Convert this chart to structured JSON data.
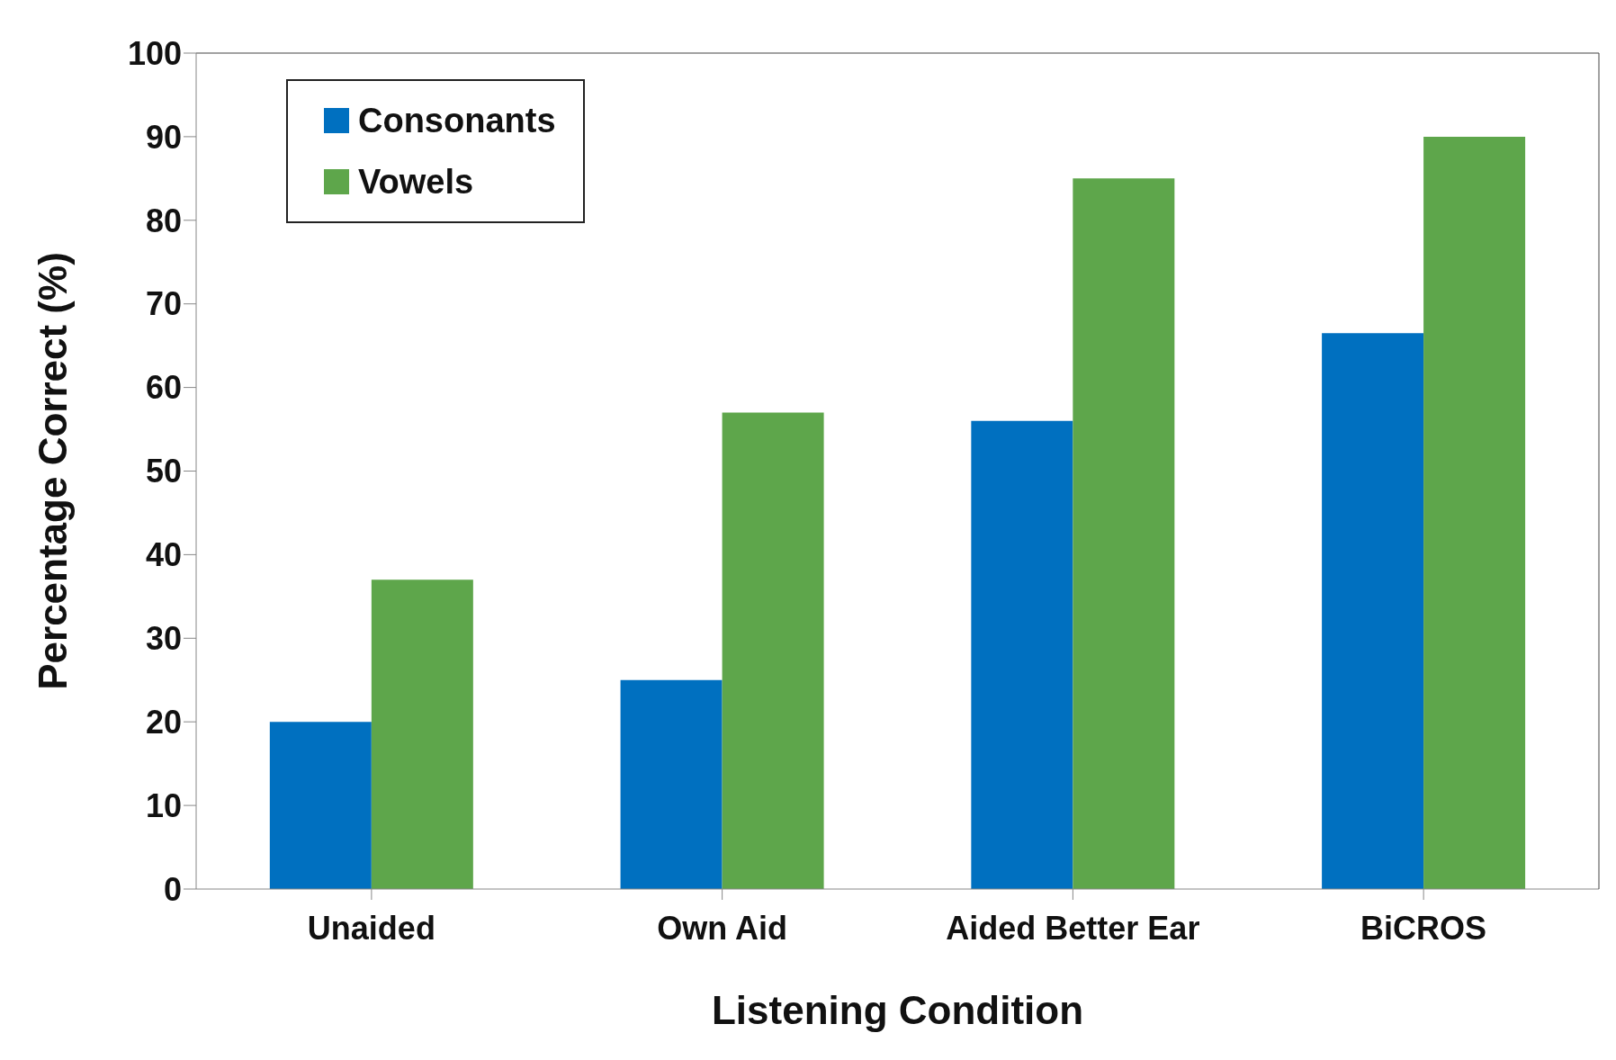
{
  "chart_data": {
    "type": "bar",
    "xlabel": "Listening Condition",
    "ylabel": "Percentage Correct (%)",
    "categories": [
      "Unaided",
      "Own Aid",
      "Aided Better Ear",
      "BiCROS"
    ],
    "series": [
      {
        "name": "Consonants",
        "color": "#0070c0",
        "values": [
          20,
          25,
          56,
          66.5
        ]
      },
      {
        "name": "Vowels",
        "color": "#5ea64b",
        "values": [
          37,
          57,
          85,
          90
        ]
      }
    ],
    "ylim": [
      0,
      100
    ],
    "yticks": [
      0,
      10,
      20,
      30,
      40,
      50,
      60,
      70,
      80,
      90,
      100
    ],
    "grid": false,
    "legend": "top left"
  }
}
